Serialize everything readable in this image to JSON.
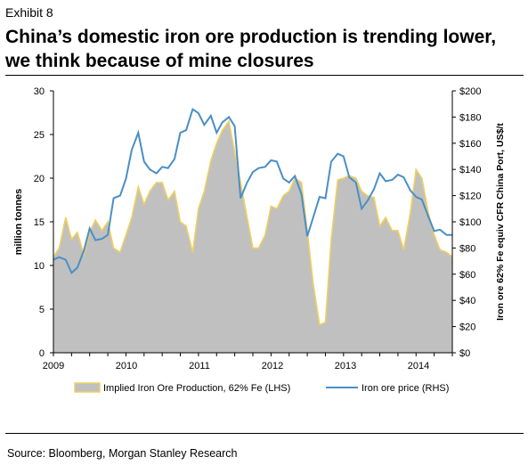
{
  "header": {
    "exhibit": "Exhibit 8",
    "title": "China’s domestic iron ore production is trending lower, we think because of mine closures"
  },
  "footer": {
    "source": "Source: Bloomberg, Morgan Stanley Research"
  },
  "colors": {
    "area_fill": "#c0c0c0",
    "area_outline": "#f0d060",
    "price_line": "#4a8fc6"
  },
  "chart_data": {
    "type": "area",
    "title": "",
    "xlabel": "",
    "ylabel": "million tonnes",
    "y2label": "Iron ore 62% Fe equiv CFR China Port, US$/t",
    "x_tick_labels": [
      "2009",
      "2010",
      "2011",
      "2012",
      "2013",
      "2014"
    ],
    "x_range": [
      2009.0,
      2014.5
    ],
    "ylim": [
      0,
      30
    ],
    "y_ticks": [
      0,
      5,
      10,
      15,
      20,
      25,
      30
    ],
    "y2lim": [
      0,
      200
    ],
    "y2_tick_labels": [
      "$0",
      "$20",
      "$40",
      "$60",
      "$80",
      "$100",
      "$120",
      "$140",
      "$160",
      "$180",
      "$200"
    ],
    "legend_position": "bottom",
    "series": [
      {
        "name": "Implied Iron Ore Production, 62% Fe (LHS)",
        "axis": "left",
        "style": "area",
        "x": [
          2009.0,
          2009.08,
          2009.17,
          2009.25,
          2009.33,
          2009.42,
          2009.5,
          2009.58,
          2009.67,
          2009.75,
          2009.83,
          2009.92,
          2010.0,
          2010.08,
          2010.17,
          2010.25,
          2010.33,
          2010.42,
          2010.5,
          2010.58,
          2010.67,
          2010.75,
          2010.83,
          2010.92,
          2011.0,
          2011.08,
          2011.17,
          2011.25,
          2011.33,
          2011.42,
          2011.5,
          2011.58,
          2011.67,
          2011.75,
          2011.83,
          2011.92,
          2012.0,
          2012.08,
          2012.17,
          2012.25,
          2012.33,
          2012.42,
          2012.5,
          2012.58,
          2012.67,
          2012.75,
          2012.83,
          2012.92,
          2013.0,
          2013.08,
          2013.17,
          2013.25,
          2013.33,
          2013.42,
          2013.5,
          2013.58,
          2013.67,
          2013.75,
          2013.83,
          2013.92,
          2014.0,
          2014.08,
          2014.17,
          2014.25,
          2014.33,
          2014.42,
          2014.5
        ],
        "values": [
          11.0,
          12.0,
          15.5,
          13.0,
          13.8,
          11.2,
          13.8,
          15.2,
          14.0,
          15.0,
          12.0,
          11.5,
          13.5,
          15.5,
          19.0,
          17.0,
          18.5,
          19.5,
          19.5,
          17.5,
          18.5,
          15.0,
          14.5,
          11.5,
          16.5,
          18.5,
          22.0,
          24.0,
          25.5,
          26.5,
          23.0,
          19.5,
          15.5,
          12.0,
          12.0,
          13.5,
          16.8,
          16.5,
          18.0,
          18.5,
          20.0,
          19.5,
          14.0,
          8.0,
          3.2,
          3.5,
          13.0,
          19.8,
          20.0,
          20.3,
          20.0,
          18.5,
          18.0,
          17.8,
          14.5,
          15.5,
          14.0,
          14.0,
          11.8,
          16.0,
          21.0,
          20.0,
          16.0,
          13.5,
          11.8,
          11.5,
          11.0
        ]
      },
      {
        "name": "Iron ore price (RHS)",
        "axis": "right",
        "style": "line",
        "x": [
          2009.0,
          2009.08,
          2009.17,
          2009.25,
          2009.33,
          2009.42,
          2009.5,
          2009.58,
          2009.67,
          2009.75,
          2009.83,
          2009.92,
          2010.0,
          2010.08,
          2010.17,
          2010.25,
          2010.33,
          2010.42,
          2010.5,
          2010.58,
          2010.67,
          2010.75,
          2010.83,
          2010.92,
          2011.0,
          2011.08,
          2011.17,
          2011.25,
          2011.33,
          2011.42,
          2011.5,
          2011.58,
          2011.67,
          2011.75,
          2011.83,
          2011.92,
          2012.0,
          2012.08,
          2012.17,
          2012.25,
          2012.33,
          2012.42,
          2012.5,
          2012.58,
          2012.67,
          2012.75,
          2012.83,
          2012.92,
          2013.0,
          2013.08,
          2013.17,
          2013.25,
          2013.33,
          2013.42,
          2013.5,
          2013.58,
          2013.67,
          2013.75,
          2013.83,
          2013.92,
          2014.0,
          2014.08,
          2014.17,
          2014.25,
          2014.33,
          2014.42,
          2014.5
        ],
        "values": [
          71,
          73,
          71,
          61,
          65,
          78,
          95,
          86,
          87,
          90,
          118,
          120,
          133,
          155,
          168,
          146,
          140,
          137,
          142,
          141,
          148,
          168,
          170,
          186,
          183,
          174,
          181,
          168,
          176,
          180,
          173,
          118,
          130,
          138,
          141,
          142,
          147,
          146,
          133,
          130,
          135,
          121,
          89,
          103,
          119,
          118,
          146,
          152,
          150,
          134,
          130,
          110,
          116,
          125,
          137,
          131,
          132,
          136,
          134,
          124,
          119,
          117,
          104,
          93,
          94,
          90,
          90
        ]
      }
    ]
  }
}
